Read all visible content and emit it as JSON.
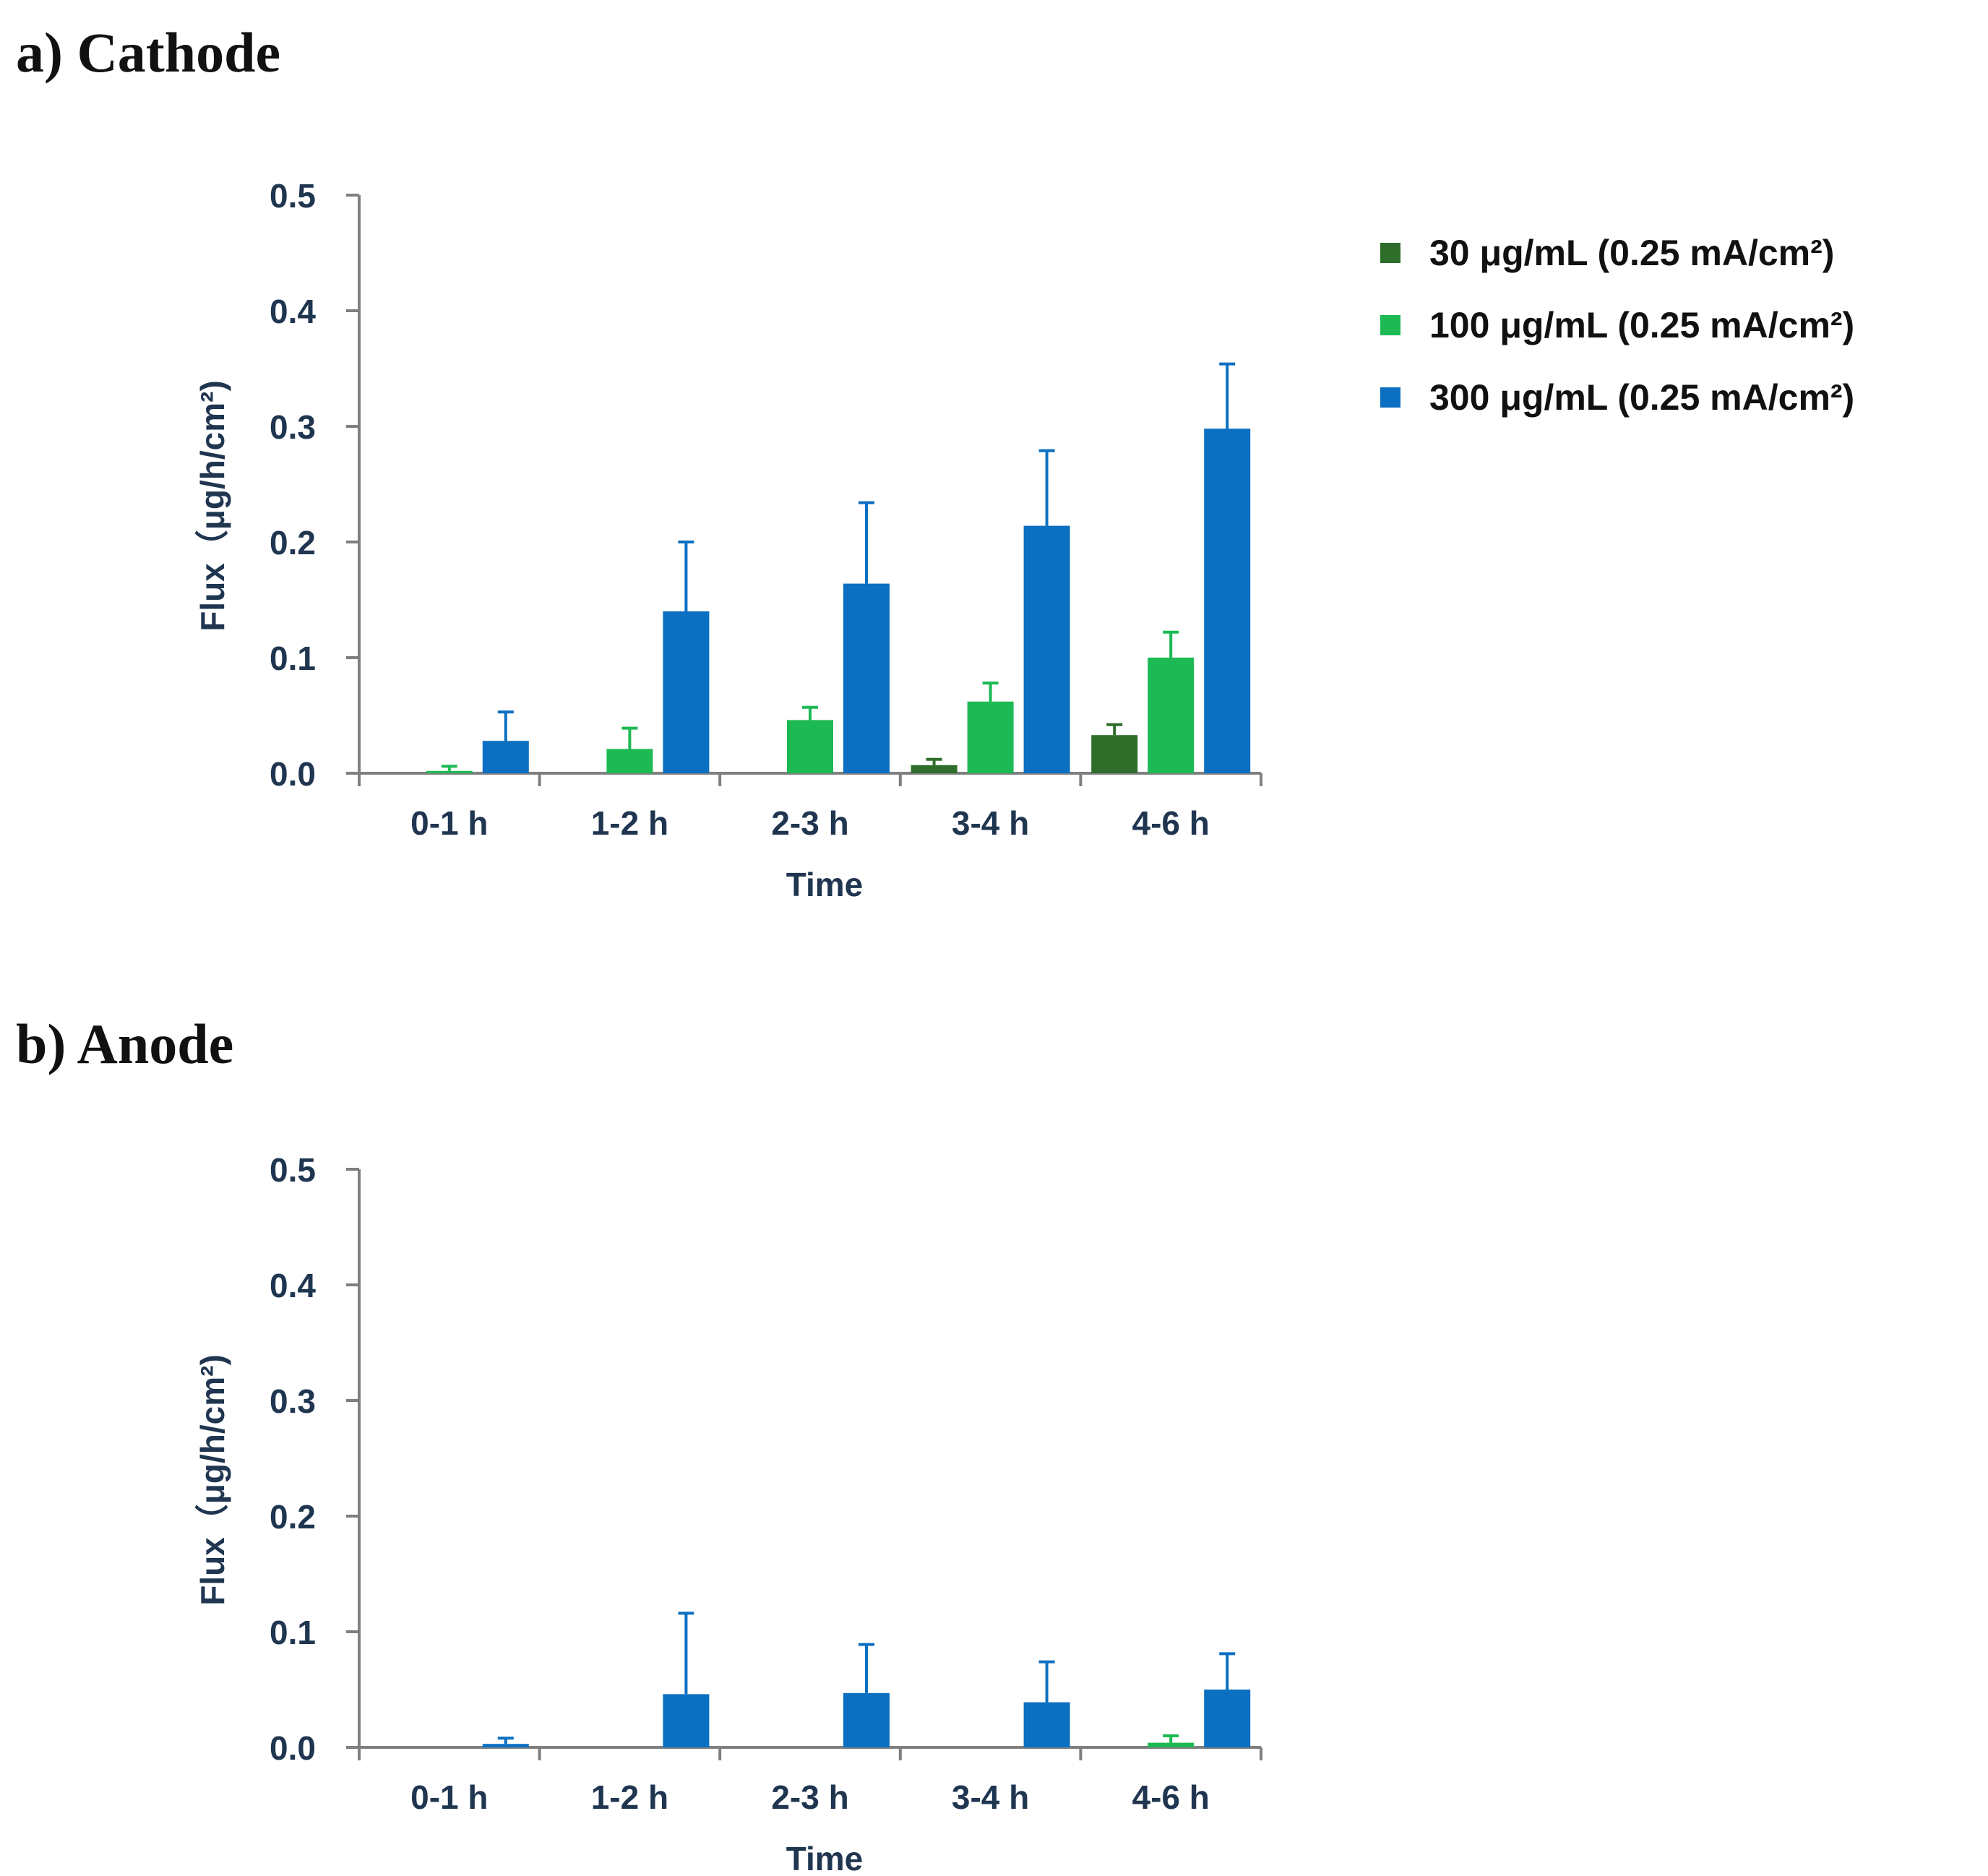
{
  "colors": {
    "axis": "#7f7f7f",
    "text": "#1f3550",
    "series": [
      "#2e6e2a",
      "#1db954",
      "#0b6fc2"
    ]
  },
  "legend": [
    {
      "label": "30 μg/mL  (0.25 mA/cm²)"
    },
    {
      "label": "100 μg/mL (0.25 mA/cm²)"
    },
    {
      "label": "300 μg/mL (0.25 mA/cm²)"
    }
  ],
  "chart_data": [
    {
      "panel_title": "a) Cathode",
      "type": "bar",
      "xlabel": "Time",
      "ylabel": "Flux（μg/h/cm²)",
      "ylim": [
        0,
        0.5
      ],
      "yticks": [
        "0.0",
        "0.1",
        "0.2",
        "0.3",
        "0.4",
        "0.5"
      ],
      "categories": [
        "0-1 h",
        "1-2 h",
        "2-3 h",
        "3-4 h",
        "4-6 h"
      ],
      "series": [
        {
          "name": "30 μg/mL (0.25 mA/cm²)",
          "values": [
            0,
            0,
            0,
            0.007,
            0.033
          ],
          "errors": [
            0,
            0,
            0,
            0.005,
            0.009
          ]
        },
        {
          "name": "100 μg/mL (0.25 mA/cm²)",
          "values": [
            0.002,
            0.021,
            0.046,
            0.062,
            0.1
          ],
          "errors": [
            0.004,
            0.018,
            0.011,
            0.016,
            0.022
          ]
        },
        {
          "name": "300 μg/mL (0.25 mA/cm²)",
          "values": [
            0.028,
            0.14,
            0.164,
            0.214,
            0.298
          ],
          "errors": [
            0.025,
            0.06,
            0.07,
            0.065,
            0.056
          ]
        }
      ]
    },
    {
      "panel_title": "b) Anode",
      "type": "bar",
      "xlabel": "Time",
      "ylabel": "Flux（μg/h/cm²)",
      "ylim": [
        0,
        0.5
      ],
      "yticks": [
        "0.0",
        "0.1",
        "0.2",
        "0.3",
        "0.4",
        "0.5"
      ],
      "categories": [
        "0-1 h",
        "1-2 h",
        "2-3 h",
        "3-4 h",
        "4-6 h"
      ],
      "series": [
        {
          "name": "30 μg/mL (0.25 mA/cm²)",
          "values": [
            0,
            0,
            0,
            0,
            0
          ],
          "errors": [
            0,
            0,
            0,
            0,
            0
          ]
        },
        {
          "name": "100 μg/mL (0.25 mA/cm²)",
          "values": [
            0,
            0,
            0,
            0,
            0.004
          ],
          "errors": [
            0,
            0,
            0,
            0,
            0.006
          ]
        },
        {
          "name": "300 μg/mL (0.25 mA/cm²)",
          "values": [
            0.003,
            0.046,
            0.047,
            0.039,
            0.05
          ],
          "errors": [
            0.005,
            0.07,
            0.042,
            0.035,
            0.031
          ]
        }
      ]
    }
  ]
}
